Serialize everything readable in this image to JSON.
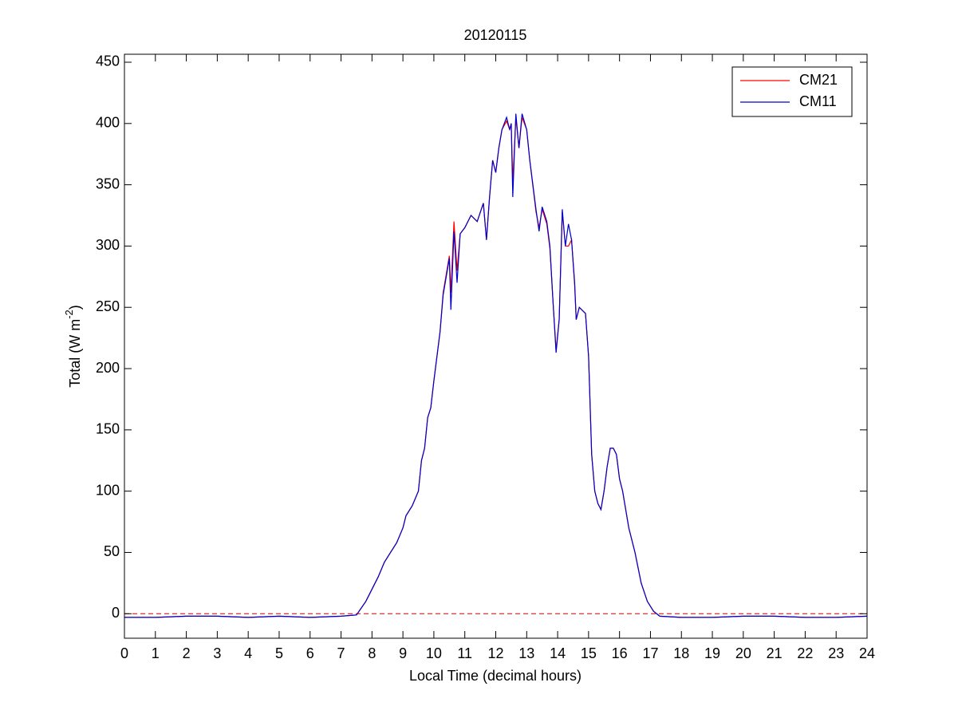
{
  "chart_data": {
    "type": "line",
    "title": "20120115",
    "xlabel": "Local Time (decimal hours)",
    "ylabel": {
      "text": "Total (W m",
      "sup": "-2",
      "end": ")"
    },
    "x": [
      0,
      1,
      2,
      3,
      4,
      5,
      6,
      7,
      7.5,
      7.8,
      8,
      8.2,
      8.4,
      8.6,
      8.8,
      9,
      9.1,
      9.3,
      9.5,
      9.6,
      9.7,
      9.8,
      9.9,
      10,
      10.2,
      10.3,
      10.5,
      10.55,
      10.65,
      10.75,
      10.85,
      11,
      11.2,
      11.4,
      11.6,
      11.7,
      11.8,
      11.9,
      12,
      12.1,
      12.2,
      12.35,
      12.45,
      12.5,
      12.55,
      12.65,
      12.75,
      12.85,
      13,
      13.1,
      13.3,
      13.4,
      13.5,
      13.65,
      13.75,
      13.85,
      13.95,
      14.05,
      14.15,
      14.25,
      14.35,
      14.45,
      14.55,
      14.6,
      14.7,
      14.9,
      15,
      15.1,
      15.2,
      15.3,
      15.4,
      15.5,
      15.6,
      15.7,
      15.8,
      15.9,
      16,
      16.1,
      16.3,
      16.5,
      16.7,
      16.9,
      17.1,
      17.3,
      18,
      19,
      20,
      21,
      22,
      23,
      24
    ],
    "series": [
      {
        "name": "CM21",
        "color": "#ff0000",
        "values": [
          -3,
          -3,
          -2,
          -2,
          -3,
          -2,
          -3,
          -2,
          -1,
          10,
          20,
          30,
          42,
          50,
          58,
          70,
          80,
          88,
          100,
          125,
          135,
          160,
          168,
          190,
          230,
          262,
          292,
          262,
          320,
          280,
          310,
          315,
          325,
          320,
          335,
          305,
          340,
          370,
          360,
          380,
          395,
          402,
          395,
          400,
          352,
          405,
          380,
          405,
          395,
          370,
          328,
          315,
          330,
          318,
          298,
          255,
          215,
          240,
          328,
          300,
          300,
          305,
          268,
          240,
          250,
          245,
          210,
          130,
          100,
          90,
          85,
          100,
          120,
          135,
          135,
          130,
          110,
          100,
          70,
          50,
          25,
          10,
          2,
          -2,
          -3,
          -3,
          -2,
          -2,
          -3,
          -3,
          -2
        ]
      },
      {
        "name": "CM11",
        "color": "#0000cc",
        "values": [
          -3,
          -3,
          -2,
          -2,
          -3,
          -2,
          -3,
          -2,
          -1,
          10,
          20,
          30,
          42,
          50,
          58,
          70,
          80,
          88,
          100,
          125,
          135,
          160,
          168,
          190,
          230,
          260,
          290,
          248,
          312,
          270,
          310,
          315,
          325,
          320,
          335,
          305,
          340,
          370,
          360,
          380,
          395,
          405,
          395,
          400,
          340,
          408,
          380,
          408,
          395,
          370,
          330,
          312,
          332,
          320,
          300,
          255,
          213,
          240,
          330,
          300,
          318,
          305,
          270,
          240,
          250,
          245,
          210,
          130,
          100,
          90,
          85,
          100,
          120,
          135,
          135,
          130,
          110,
          100,
          70,
          50,
          25,
          10,
          2,
          -2,
          -3,
          -3,
          -2,
          -2,
          -3,
          -3,
          -2
        ]
      }
    ],
    "reference_line": {
      "value": 0,
      "color": "#cc0000"
    },
    "xlim": [
      0,
      24
    ],
    "xticks": [
      0,
      1,
      2,
      3,
      4,
      5,
      6,
      7,
      8,
      9,
      10,
      11,
      12,
      13,
      14,
      15,
      16,
      17,
      18,
      19,
      20,
      21,
      22,
      23,
      24
    ],
    "ylim": [
      -20,
      456.5
    ],
    "yticks": [
      0,
      50,
      100,
      150,
      200,
      250,
      300,
      350,
      400,
      450
    ],
    "legend": "top-right",
    "grid": false
  }
}
